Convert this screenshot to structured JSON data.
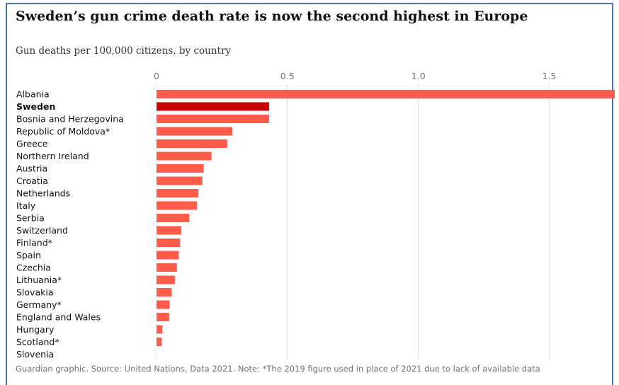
{
  "title": "Sweden’s gun crime death rate is now the second highest in Europe",
  "subtitle": "Gun deaths per 100,000 citizens, by country",
  "footer": "Guardian graphic. Source: United Nations, Data 2021. Note: *The 2019 figure used in place of 2021 due to lack of available data",
  "colors": {
    "bar": "#ff5b4b",
    "highlight": "#c70000",
    "axis": "#dcdcdc",
    "text": "#121212"
  },
  "chart_data": {
    "type": "bar",
    "orientation": "horizontal",
    "xlim": [
      0,
      1.75
    ],
    "ticks": [
      {
        "value": 0,
        "label": "0"
      },
      {
        "value": 0.5,
        "label": "0.5"
      },
      {
        "value": 1.0,
        "label": "1.0"
      },
      {
        "value": 1.5,
        "label": "1.5"
      }
    ],
    "highlight": "Sweden",
    "categories": [
      "Albania",
      "Sweden",
      "Bosnia and Herzegovina",
      "Republic of Moldova*",
      "Greece",
      "Northern Ireland",
      "Austria",
      "Croatia",
      "Netherlands",
      "Italy",
      "Serbia",
      "Switzerland",
      "Finland*",
      "Spain",
      "Czechia",
      "Lithuania*",
      "Slovakia",
      "Germany*",
      "England and Wales",
      "Hungary",
      "Scotland*",
      "Slovenia"
    ],
    "values": [
      1.75,
      0.43,
      0.43,
      0.29,
      0.27,
      0.21,
      0.18,
      0.175,
      0.16,
      0.155,
      0.125,
      0.095,
      0.09,
      0.085,
      0.078,
      0.07,
      0.058,
      0.05,
      0.048,
      0.022,
      0.02,
      0.0
    ]
  }
}
